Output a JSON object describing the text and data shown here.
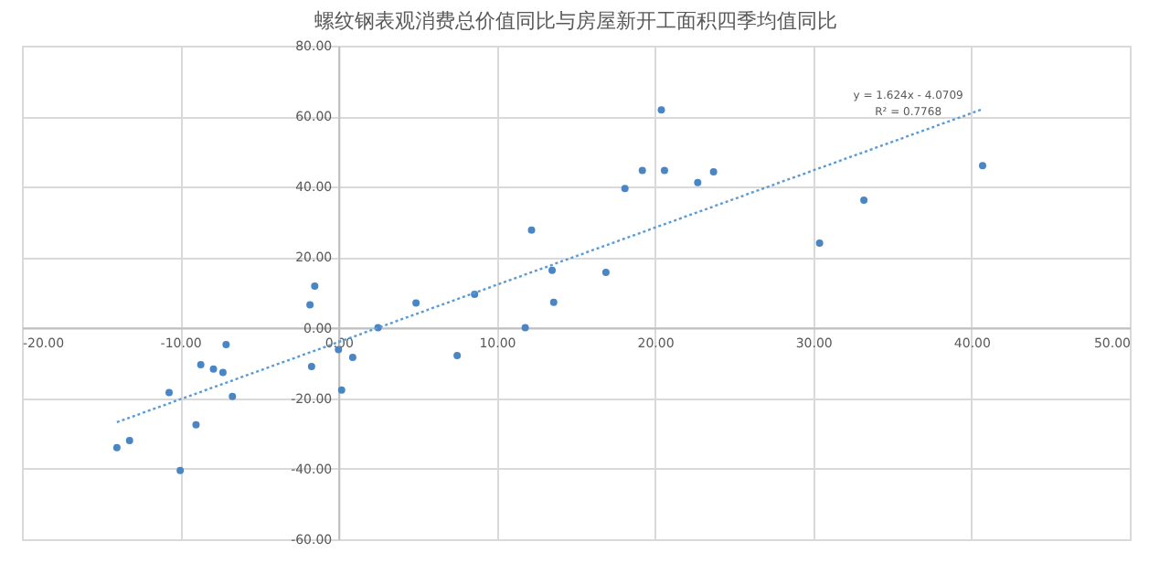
{
  "chart_data": {
    "type": "scatter",
    "title": "螺纹钢表观消费总价值同比与房屋新开工面积四季均值同比",
    "xlim": [
      -20,
      50
    ],
    "xticks": [
      {
        "value": -20,
        "label": "-20.00"
      },
      {
        "value": -10,
        "label": "-10.00"
      },
      {
        "value": 0,
        "label": "0.00"
      },
      {
        "value": 10,
        "label": "10.00"
      },
      {
        "value": 20,
        "label": "20.00"
      },
      {
        "value": 30,
        "label": "30.00"
      },
      {
        "value": 40,
        "label": "40.00"
      },
      {
        "value": 50,
        "label": "50.00"
      }
    ],
    "ylim": [
      -60,
      80
    ],
    "yticks": [
      {
        "value": -60,
        "label": "-60.00"
      },
      {
        "value": -40,
        "label": "-40.00"
      },
      {
        "value": -20,
        "label": "-20.00"
      },
      {
        "value": 0,
        "label": "0.00"
      },
      {
        "value": 20,
        "label": "20.00"
      },
      {
        "value": 40,
        "label": "40.00"
      },
      {
        "value": 60,
        "label": "60.00"
      },
      {
        "value": 80,
        "label": "80.00"
      }
    ],
    "grid": true,
    "series": [
      {
        "marker": "circle",
        "color": "#4a86c5",
        "x": [
          -14.0,
          -13.2,
          -10.7,
          -10.0,
          -9.0,
          -8.7,
          -7.9,
          -7.3,
          -7.1,
          -6.7,
          -1.8,
          -1.5,
          -1.7,
          0.0,
          0.2,
          0.9,
          2.5,
          4.9,
          7.5,
          8.6,
          11.8,
          12.2,
          13.5,
          13.6,
          16.9,
          30.4,
          33.2,
          40.7,
          18.1,
          19.2,
          20.4,
          20.6,
          22.7,
          23.7
        ],
        "values": [
          -34.0,
          -32.0,
          -18.4,
          -40.5,
          -27.5,
          -10.5,
          -11.7,
          -12.7,
          -4.8,
          -19.5,
          6.5,
          11.8,
          -11.0,
          -6.2,
          -17.7,
          -8.4,
          0.0,
          7.0,
          -7.9,
          9.5,
          0.0,
          27.7,
          16.3,
          7.2,
          15.7,
          24.0,
          36.2,
          46.0,
          39.5,
          44.6,
          61.8,
          44.6,
          41.2,
          44.2
        ]
      },
      {
        "type": "line",
        "line_style": "dotted",
        "marker": "none",
        "color": "#5b9bd5",
        "x": [
          -14.0,
          40.7
        ],
        "values": [
          -26.8,
          62.0
        ]
      }
    ],
    "annotations": [
      "y = 1.624x - 4.0709",
      "R² = 0.7768"
    ]
  }
}
